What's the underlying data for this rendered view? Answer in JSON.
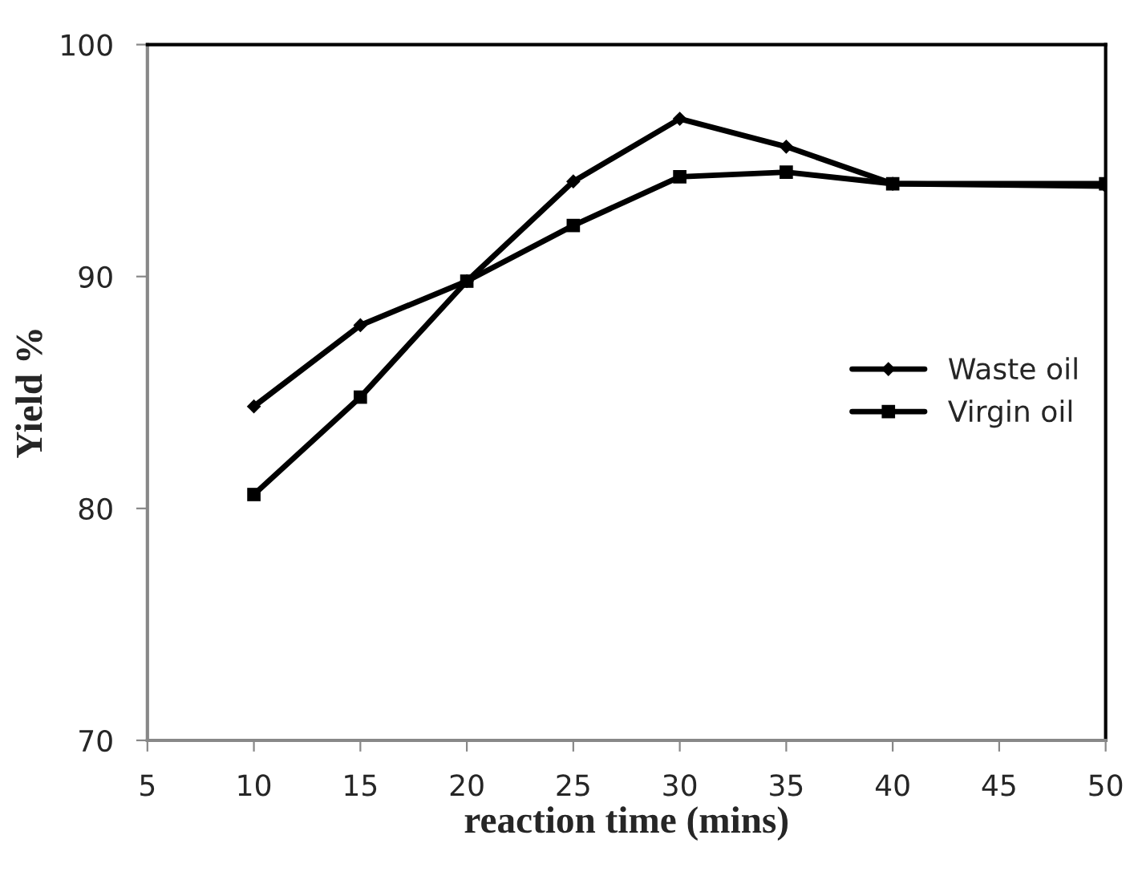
{
  "chart_data": {
    "type": "line",
    "xlabel": "reaction time (mins)",
    "ylabel": "Yield %",
    "x": [
      10,
      15,
      20,
      25,
      30,
      35,
      40,
      50
    ],
    "series": [
      {
        "name": "Waste oil",
        "color": "#000000",
        "marker": "diamond",
        "values": [
          84.4,
          87.9,
          89.8,
          94.1,
          96.8,
          95.6,
          94.0,
          93.9
        ]
      },
      {
        "name": "Virgin oil",
        "color": "#000000",
        "marker": "square",
        "values": [
          80.6,
          84.8,
          89.8,
          92.2,
          94.3,
          94.5,
          94.0,
          94.0
        ]
      }
    ],
    "xlim": [
      5,
      50
    ],
    "xticks": [
      5,
      10,
      15,
      20,
      25,
      30,
      35,
      40,
      45,
      50
    ],
    "ylim": [
      70,
      100
    ],
    "yticks": [
      70,
      80,
      90,
      100
    ],
    "grid": false,
    "legend": "right",
    "line_style": "solid"
  }
}
